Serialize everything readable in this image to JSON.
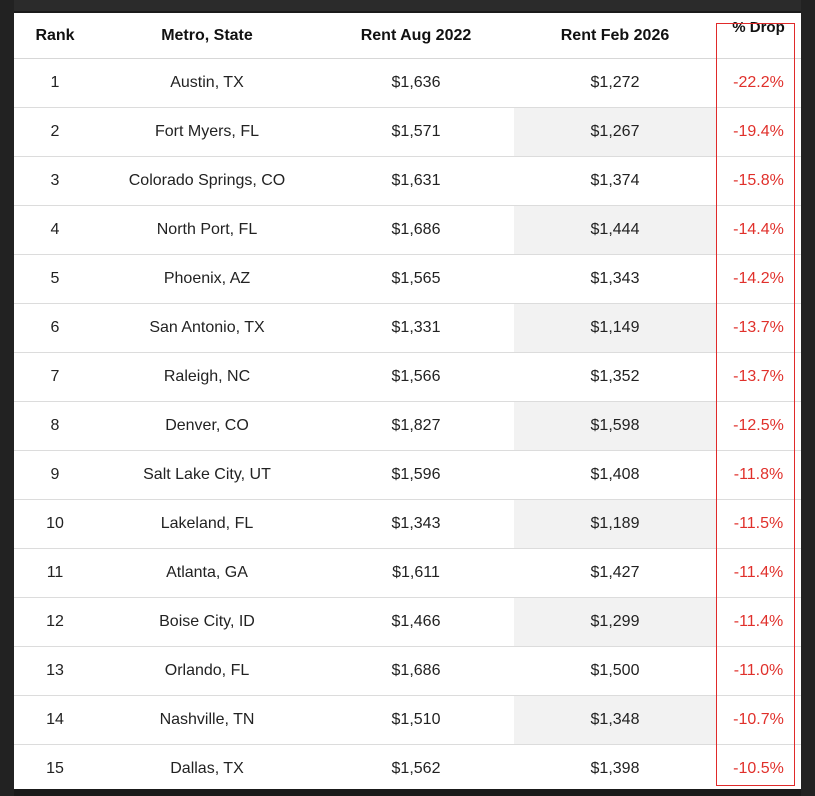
{
  "table": {
    "headers": {
      "rank": "Rank",
      "metro": "Metro, State",
      "rent_aug_2022": "Rent Aug 2022",
      "rent_feb_2026": "Rent Feb 2026",
      "pct_drop": "% Drop"
    },
    "rows": [
      {
        "rank": "1",
        "metro": "Austin, TX",
        "aug": "$1,636",
        "feb": "$1,272",
        "drop": "-22.2%"
      },
      {
        "rank": "2",
        "metro": "Fort Myers, FL",
        "aug": "$1,571",
        "feb": "$1,267",
        "drop": "-19.4%"
      },
      {
        "rank": "3",
        "metro": "Colorado Springs, CO",
        "aug": "$1,631",
        "feb": "$1,374",
        "drop": "-15.8%"
      },
      {
        "rank": "4",
        "metro": "North Port, FL",
        "aug": "$1,686",
        "feb": "$1,444",
        "drop": "-14.4%"
      },
      {
        "rank": "5",
        "metro": "Phoenix, AZ",
        "aug": "$1,565",
        "feb": "$1,343",
        "drop": "-14.2%"
      },
      {
        "rank": "6",
        "metro": "San Antonio, TX",
        "aug": "$1,331",
        "feb": "$1,149",
        "drop": "-13.7%"
      },
      {
        "rank": "7",
        "metro": "Raleigh, NC",
        "aug": "$1,566",
        "feb": "$1,352",
        "drop": "-13.7%"
      },
      {
        "rank": "8",
        "metro": "Denver, CO",
        "aug": "$1,827",
        "feb": "$1,598",
        "drop": "-12.5%"
      },
      {
        "rank": "9",
        "metro": "Salt Lake City, UT",
        "aug": "$1,596",
        "feb": "$1,408",
        "drop": "-11.8%"
      },
      {
        "rank": "10",
        "metro": "Lakeland, FL",
        "aug": "$1,343",
        "feb": "$1,189",
        "drop": "-11.5%"
      },
      {
        "rank": "11",
        "metro": "Atlanta, GA",
        "aug": "$1,611",
        "feb": "$1,427",
        "drop": "-11.4%"
      },
      {
        "rank": "12",
        "metro": "Boise City, ID",
        "aug": "$1,466",
        "feb": "$1,299",
        "drop": "-11.4%"
      },
      {
        "rank": "13",
        "metro": "Orlando, FL",
        "aug": "$1,686",
        "feb": "$1,500",
        "drop": "-11.0%"
      },
      {
        "rank": "14",
        "metro": "Nashville, TN",
        "aug": "$1,510",
        "feb": "$1,348",
        "drop": "-10.7%"
      },
      {
        "rank": "15",
        "metro": "Dallas, TX",
        "aug": "$1,562",
        "feb": "$1,398",
        "drop": "-10.5%"
      }
    ]
  },
  "colors": {
    "drop_text": "#e0302b",
    "highlight_border": "#e02a2a",
    "shaded_cell": "#f2f2f2"
  }
}
